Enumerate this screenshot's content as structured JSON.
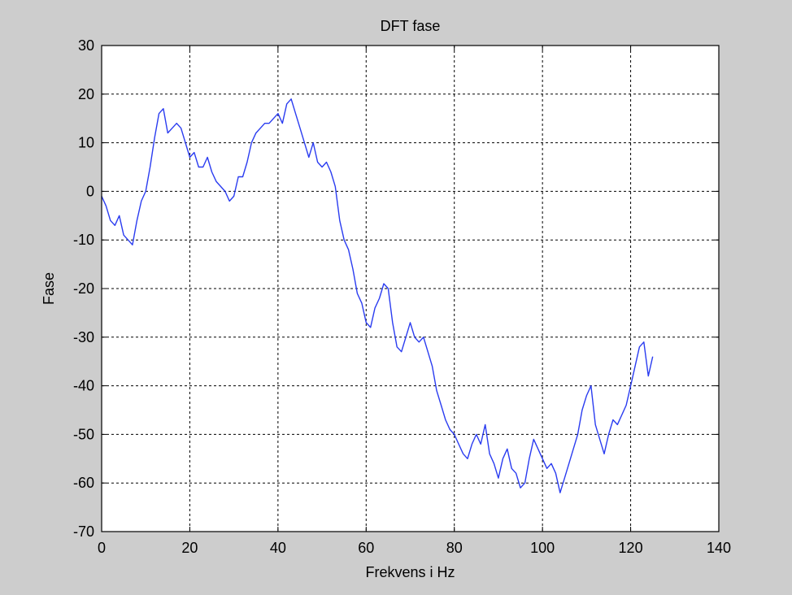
{
  "colors": {
    "figure_background": "#cdcdcd",
    "axes_background": "#ffffff",
    "line": "#2a3cf0",
    "grid": "#000000"
  },
  "chart_data": {
    "type": "line",
    "title": "DFT fase",
    "xlabel": "Frekvens i Hz",
    "ylabel": "Fase",
    "xlim": [
      0,
      140
    ],
    "ylim": [
      -70,
      30
    ],
    "xticks": [
      0,
      20,
      40,
      60,
      80,
      100,
      120,
      140
    ],
    "yticks": [
      30,
      20,
      10,
      0,
      -10,
      -20,
      -30,
      -40,
      -50,
      -60,
      -70
    ],
    "grid": "dashed",
    "legend": "none",
    "series": [
      {
        "color": "#2a3cf0",
        "x": [
          0,
          1,
          2,
          3,
          4,
          5,
          6,
          7,
          8,
          9,
          10,
          11,
          12,
          13,
          14,
          15,
          16,
          17,
          18,
          19,
          20,
          21,
          22,
          23,
          24,
          25,
          26,
          27,
          28,
          29,
          30,
          31,
          32,
          33,
          34,
          35,
          36,
          37,
          38,
          39,
          40,
          41,
          42,
          43,
          44,
          45,
          46,
          47,
          48,
          49,
          50,
          51,
          52,
          53,
          54,
          55,
          56,
          57,
          58,
          59,
          60,
          61,
          62,
          63,
          64,
          65,
          66,
          67,
          68,
          69,
          70,
          71,
          72,
          73,
          74,
          75,
          76,
          77,
          78,
          79,
          80,
          81,
          82,
          83,
          84,
          85,
          86,
          87,
          88,
          89,
          90,
          91,
          92,
          93,
          94,
          95,
          96,
          97,
          98,
          99,
          100,
          101,
          102,
          103,
          104,
          105,
          106,
          107,
          108,
          109,
          110,
          111,
          112,
          113,
          114,
          115,
          116,
          117,
          118,
          119,
          120,
          121,
          122,
          123,
          124,
          125
        ],
        "y": [
          -1,
          -3,
          -6,
          -7,
          -5,
          -9,
          -10,
          -11,
          -6,
          -2,
          0,
          5,
          11,
          16,
          17,
          12,
          13,
          14,
          13,
          10,
          7,
          8,
          5,
          5,
          7,
          4,
          2,
          1,
          0,
          -2,
          -1,
          3,
          3,
          6,
          10,
          12,
          13,
          14,
          14,
          15,
          16,
          14,
          18,
          19,
          16,
          13,
          10,
          7,
          10,
          6,
          5,
          6,
          4,
          1,
          -6,
          -10,
          -12,
          -16,
          -21,
          -23,
          -27,
          -28,
          -24,
          -22,
          -19,
          -20,
          -27,
          -32,
          -33,
          -30,
          -27,
          -30,
          -31,
          -30,
          -33,
          -36,
          -41,
          -44,
          -47,
          -49,
          -50,
          -52,
          -54,
          -55,
          -52,
          -50,
          -52,
          -48,
          -54,
          -56,
          -59,
          -55,
          -53,
          -57,
          -58,
          -61,
          -60,
          -55,
          -51,
          -53,
          -55,
          -57,
          -56,
          -58,
          -62,
          -59,
          -56,
          -53,
          -50,
          -45,
          -42,
          -40,
          -48,
          -51,
          -54,
          -50,
          -47,
          -48,
          -46,
          -44,
          -40,
          -36,
          -32,
          -31,
          -38,
          -34
        ]
      }
    ]
  }
}
